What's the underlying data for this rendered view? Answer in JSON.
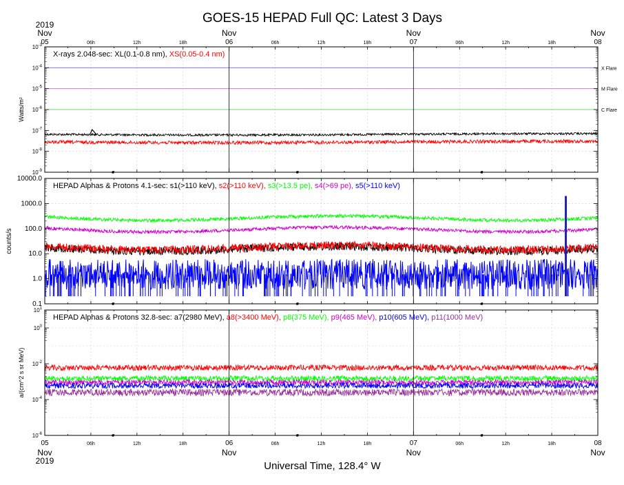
{
  "title": "GOES-15 HEPAD Full QC: Latest 3 Days",
  "footer": "Universal Time, 128.4° W",
  "colors": {
    "black": "#000000",
    "red": "#ff0000",
    "green": "#00ff00",
    "magenta": "#cc00cc",
    "blue": "#0000ff",
    "purple": "#993399"
  },
  "top_axis": {
    "date_labels": [
      {
        "line1": "2019",
        "line2": "Nov",
        "day": "05"
      },
      {
        "line1": "",
        "line2": "Nov",
        "day": "06"
      },
      {
        "line1": "",
        "line2": "Nov",
        "day": "07"
      },
      {
        "line1": "",
        "line2": "Nov",
        "day": "08"
      }
    ],
    "hour_labels": [
      "06h",
      "12h",
      "18h"
    ]
  },
  "bottom_axis": {
    "day_labels": [
      {
        "day": "05",
        "month": "Nov",
        "year": "2019"
      },
      {
        "day": "06",
        "month": "Nov",
        "year": ""
      },
      {
        "day": "07",
        "month": "Nov",
        "year": ""
      },
      {
        "day": "08",
        "month": "Nov",
        "year": ""
      }
    ],
    "hour_labels": [
      "06h",
      "12h",
      "18h"
    ]
  },
  "chart_data": [
    {
      "type": "line",
      "ylabel": "Watts/m²",
      "y_scale": "log",
      "ylim": [
        1e-09,
        0.001
      ],
      "y_ticks": [
        {
          "base": "10",
          "exp": "-3"
        },
        {
          "base": "10",
          "exp": "-4"
        },
        {
          "base": "10",
          "exp": "-5"
        },
        {
          "base": "10",
          "exp": "-6"
        },
        {
          "base": "10",
          "exp": "-7"
        },
        {
          "base": "10",
          "exp": "-8"
        },
        {
          "base": "10",
          "exp": "-9"
        }
      ],
      "x": {
        "start": "2019-11-05 00:00",
        "end": "2019-11-08 00:00"
      },
      "legend_prefix": "X-rays  2.048-sec: ",
      "series": [
        {
          "name": "XL(0.1-0.8 nm),",
          "color": "#000000",
          "level": 6.5e-08
        },
        {
          "name": "XS(0.05-0.4 nm)",
          "color": "#ff0000",
          "level": 2.8e-08
        }
      ],
      "thresholds": [
        {
          "label": "X Flare",
          "value": 0.0001,
          "color": "#6666ff"
        },
        {
          "label": "M Flare",
          "value": 1e-05,
          "color": "#cc66cc"
        },
        {
          "label": "C Flare",
          "value": 1e-06,
          "color": "#66dd66"
        }
      ],
      "events": [
        {
          "time": "2019-11-05 06:10",
          "peak": 1.1e-07
        }
      ]
    },
    {
      "type": "line",
      "ylabel": "counts/s",
      "y_scale": "log",
      "ylim": [
        0.1,
        10000
      ],
      "y_ticks": [
        "10000.0",
        "1000.0",
        "100.0",
        "10.0",
        "1.0",
        "0.1"
      ],
      "x": {
        "start": "2019-11-05 00:00",
        "end": "2019-11-08 00:00"
      },
      "legend_prefix": "HEPAD Alphas & Protons 4.1-sec: ",
      "series": [
        {
          "name": "s1(>110 keV),",
          "color": "#000000",
          "level": 18
        },
        {
          "name": "s2(>110 keV),",
          "color": "#ff0000",
          "level": 20
        },
        {
          "name": "s3(>13.5 pe),",
          "color": "#00ff00",
          "level": 300
        },
        {
          "name": "s4(>69 pe),",
          "color": "#cc00cc",
          "level": 105
        },
        {
          "name": "s5(>110 keV)",
          "color": "#0000ff",
          "level": 1.5
        }
      ],
      "events": [
        {
          "time": "2019-11-07 19:50",
          "peak": 2000
        }
      ]
    },
    {
      "type": "line",
      "ylabel": "a/(cm^2 s sr MeV)",
      "y_scale": "log",
      "ylim": [
        1e-06,
        10
      ],
      "y_ticks": [
        {
          "base": "10",
          "exp": "1"
        },
        {
          "base": "10",
          "exp": "0"
        },
        {
          "base": "10",
          "exp": "-2"
        },
        {
          "base": "10",
          "exp": "-4"
        },
        {
          "base": "10",
          "exp": "-6"
        }
      ],
      "x": {
        "start": "2019-11-05 00:00",
        "end": "2019-11-08 00:00"
      },
      "legend_prefix": "HEPAD Alphas & Protons 32.8-sec: ",
      "series": [
        {
          "name": "a7(2980 MeV),",
          "color": "#000000",
          "level": 0.0
        },
        {
          "name": "a8(>3400 MeV),",
          "color": "#ff0000",
          "level": 0.006
        },
        {
          "name": "p8(375 MeV),",
          "color": "#00ff00",
          "level": 0.0015
        },
        {
          "name": "p9(465 MeV),",
          "color": "#cc00cc",
          "level": 0.0009
        },
        {
          "name": "p10(605 MeV),",
          "color": "#0000ff",
          "level": 0.0006
        },
        {
          "name": "p11(1000 MeV)",
          "color": "#993399",
          "level": 0.00025
        }
      ]
    }
  ]
}
